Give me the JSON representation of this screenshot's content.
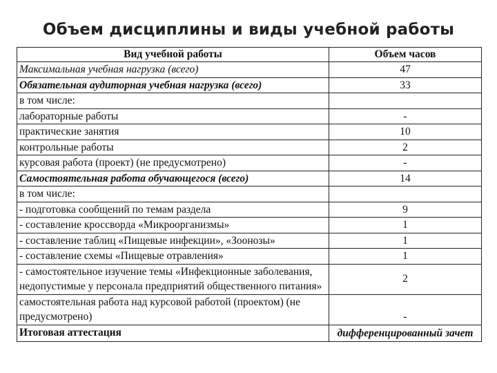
{
  "title": "Объем дисциплины и виды учебной работы",
  "table": {
    "headers": [
      "Вид учебной работы",
      "Объем часов"
    ],
    "rows": [
      {
        "label": "Максимальная учебная нагрузка (всего)",
        "value": "47",
        "style": "italic"
      },
      {
        "label": "Обязательная аудиторная учебная нагрузка (всего)",
        "value": "33",
        "style": "bold-italic"
      },
      {
        "label": "в том числе:",
        "value": "",
        "style": "normal"
      },
      {
        "label": "лабораторные работы",
        "value": "-",
        "style": "normal"
      },
      {
        "label": "практические занятия",
        "value": "10",
        "style": "normal"
      },
      {
        "label": "контрольные работы",
        "value": "2",
        "style": "normal"
      },
      {
        "label": "курсовая работа (проект) (не предусмотрено)",
        "value": "-",
        "style": "normal"
      },
      {
        "label": "Самостоятельная работа обучающегося (всего)",
        "value": "14",
        "style": "bold-italic"
      },
      {
        "label": "в том числе:",
        "value": "",
        "style": "normal"
      },
      {
        "label": "- подготовка сообщений по темам раздела",
        "value": "9",
        "style": "normal"
      },
      {
        "label": "- составление кроссворда «Микроорганизмы»",
        "value": "1",
        "style": "normal"
      },
      {
        "label": "- составление таблиц «Пищевые инфекции», «Зоонозы»",
        "value": "1",
        "style": "normal"
      },
      {
        "label": "- составление схемы «Пищевые отравления»",
        "value": "1",
        "style": "normal"
      },
      {
        "label": "- самостоятельное изучение темы «Инфекционные заболевания, недопустимые у персонала предприятий общественного питания»",
        "value": "2",
        "style": "normal"
      },
      {
        "label": "самостоятельная работа над курсовой работой (проектом) (не предусмотрено)",
        "value": "-",
        "style": "normal"
      },
      {
        "label": "Итоговая аттестация",
        "value": "дифференцированный зачет",
        "style": "bold"
      }
    ]
  }
}
